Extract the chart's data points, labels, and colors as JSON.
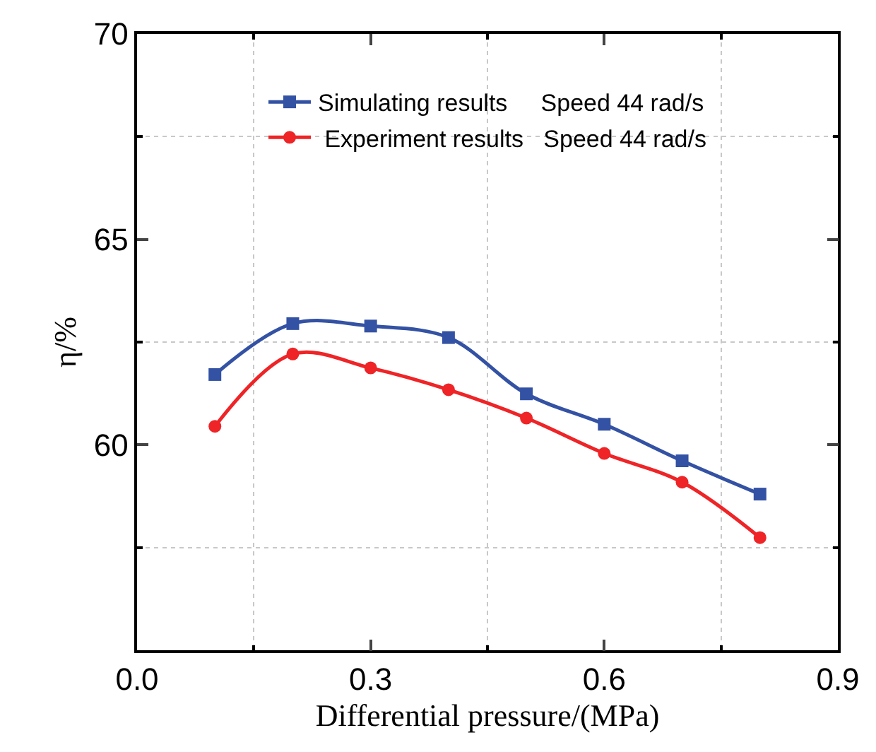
{
  "chart_data": {
    "type": "line",
    "xlabel": "Differential pressure/(MPa)",
    "ylabel": "η/%",
    "x": [
      0.1,
      0.2,
      0.3,
      0.4,
      0.5,
      0.6,
      0.7,
      0.8
    ],
    "series": [
      {
        "name": "Simulating results     Speed 44 rad/s",
        "color": "#3452a4",
        "marker": "square",
        "values": [
          61.71,
          62.95,
          62.89,
          62.61,
          61.24,
          60.5,
          59.61,
          58.8
        ]
      },
      {
        "name": " Experiment results   Speed 44 rad/s",
        "color": "#ee2427",
        "marker": "circle",
        "values": [
          60.45,
          62.21,
          61.87,
          61.34,
          60.65,
          59.79,
          59.09,
          57.74
        ]
      }
    ],
    "xlim": [
      0,
      0.9
    ],
    "xticks": [
      {
        "value": 0,
        "label": "0.0"
      },
      {
        "value": 0.15,
        "label": null
      },
      0.3,
      {
        "value": 0.45,
        "label": null
      },
      0.6,
      {
        "value": 0.75,
        "label": null
      },
      0.9
    ],
    "ylim": [
      55,
      70
    ],
    "yticks": [
      {
        "value": 55,
        "label": null
      },
      {
        "value": 57.5,
        "label": null
      },
      60,
      {
        "value": 62.5,
        "label": null
      },
      65,
      {
        "value": 67.5,
        "label": null
      },
      70
    ],
    "grid": true,
    "legend": "top",
    "line_style": "solid"
  }
}
